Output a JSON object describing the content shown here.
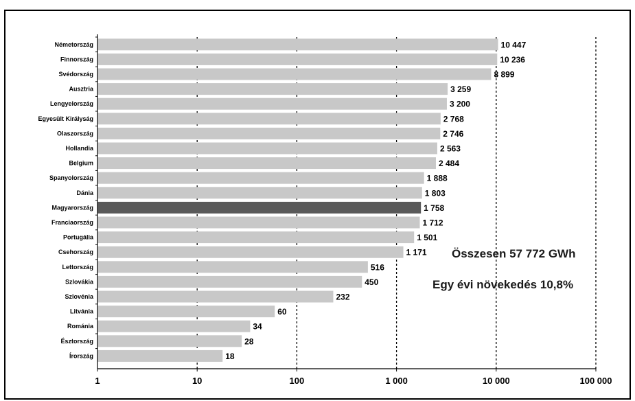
{
  "chart_data": {
    "type": "bar",
    "orientation": "horizontal",
    "x_scale": "log",
    "xlim": [
      1,
      100000
    ],
    "categories": [
      "Németország",
      "Finnország",
      "Svédország",
      "Ausztria",
      "Lengyelország",
      "Egyesült Királyság",
      "Olaszország",
      "Hollandia",
      "Belgium",
      "Spanyolország",
      "Dánia",
      "Magyarország",
      "Franciaország",
      "Portugália",
      "Csehország",
      "Lettország",
      "Szlovákia",
      "Szlovénia",
      "Litvánia",
      "Románia",
      "Észtország",
      "Írország"
    ],
    "values": [
      10447,
      10236,
      8899,
      3259,
      3200,
      2768,
      2746,
      2563,
      2484,
      1888,
      1803,
      1758,
      1712,
      1501,
      1171,
      516,
      450,
      232,
      60,
      34,
      28,
      18
    ],
    "value_labels": [
      "10 447",
      "10 236",
      "8 899",
      "3 259",
      "3 200",
      "2 768",
      "2 746",
      "2 563",
      "2 484",
      "1 888",
      "1 803",
      "1 758",
      "1 712",
      "1 501",
      "1 171",
      "516",
      "450",
      "232",
      "60",
      "34",
      "28",
      "18"
    ],
    "highlight_category": "Magyarország",
    "x_ticks": [
      1,
      10,
      100,
      1000,
      10000,
      100000
    ],
    "x_tick_labels": [
      "1",
      "10",
      "100",
      "1 000",
      "10 000",
      "100 000"
    ],
    "grid": "vertical dotted",
    "annotations": [
      "Összesen 57 772 GWh",
      "Egy évi növekedés 10,8%"
    ],
    "colors": {
      "bar": "#c8c8c8",
      "highlight": "#595959",
      "grid": "#000000"
    }
  }
}
